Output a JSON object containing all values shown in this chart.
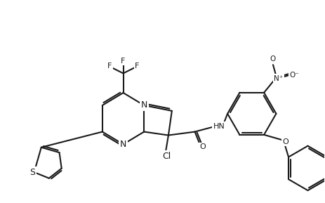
{
  "background_color": "#ffffff",
  "line_color": "#1a1a1a",
  "line_width": 1.5,
  "font_size": 9,
  "figsize": [
    4.64,
    2.89
  ],
  "dpi": 100,
  "labels": {
    "N1": "N",
    "N2": "N",
    "S": "S",
    "O1": "O",
    "O2": "O",
    "O3": "O",
    "Cl": "Cl",
    "F1": "F",
    "F2": "F",
    "F3": "F",
    "HN": "HN",
    "NO2_N": "N",
    "NO2_O1": "O",
    "NO2_O2": "O"
  }
}
